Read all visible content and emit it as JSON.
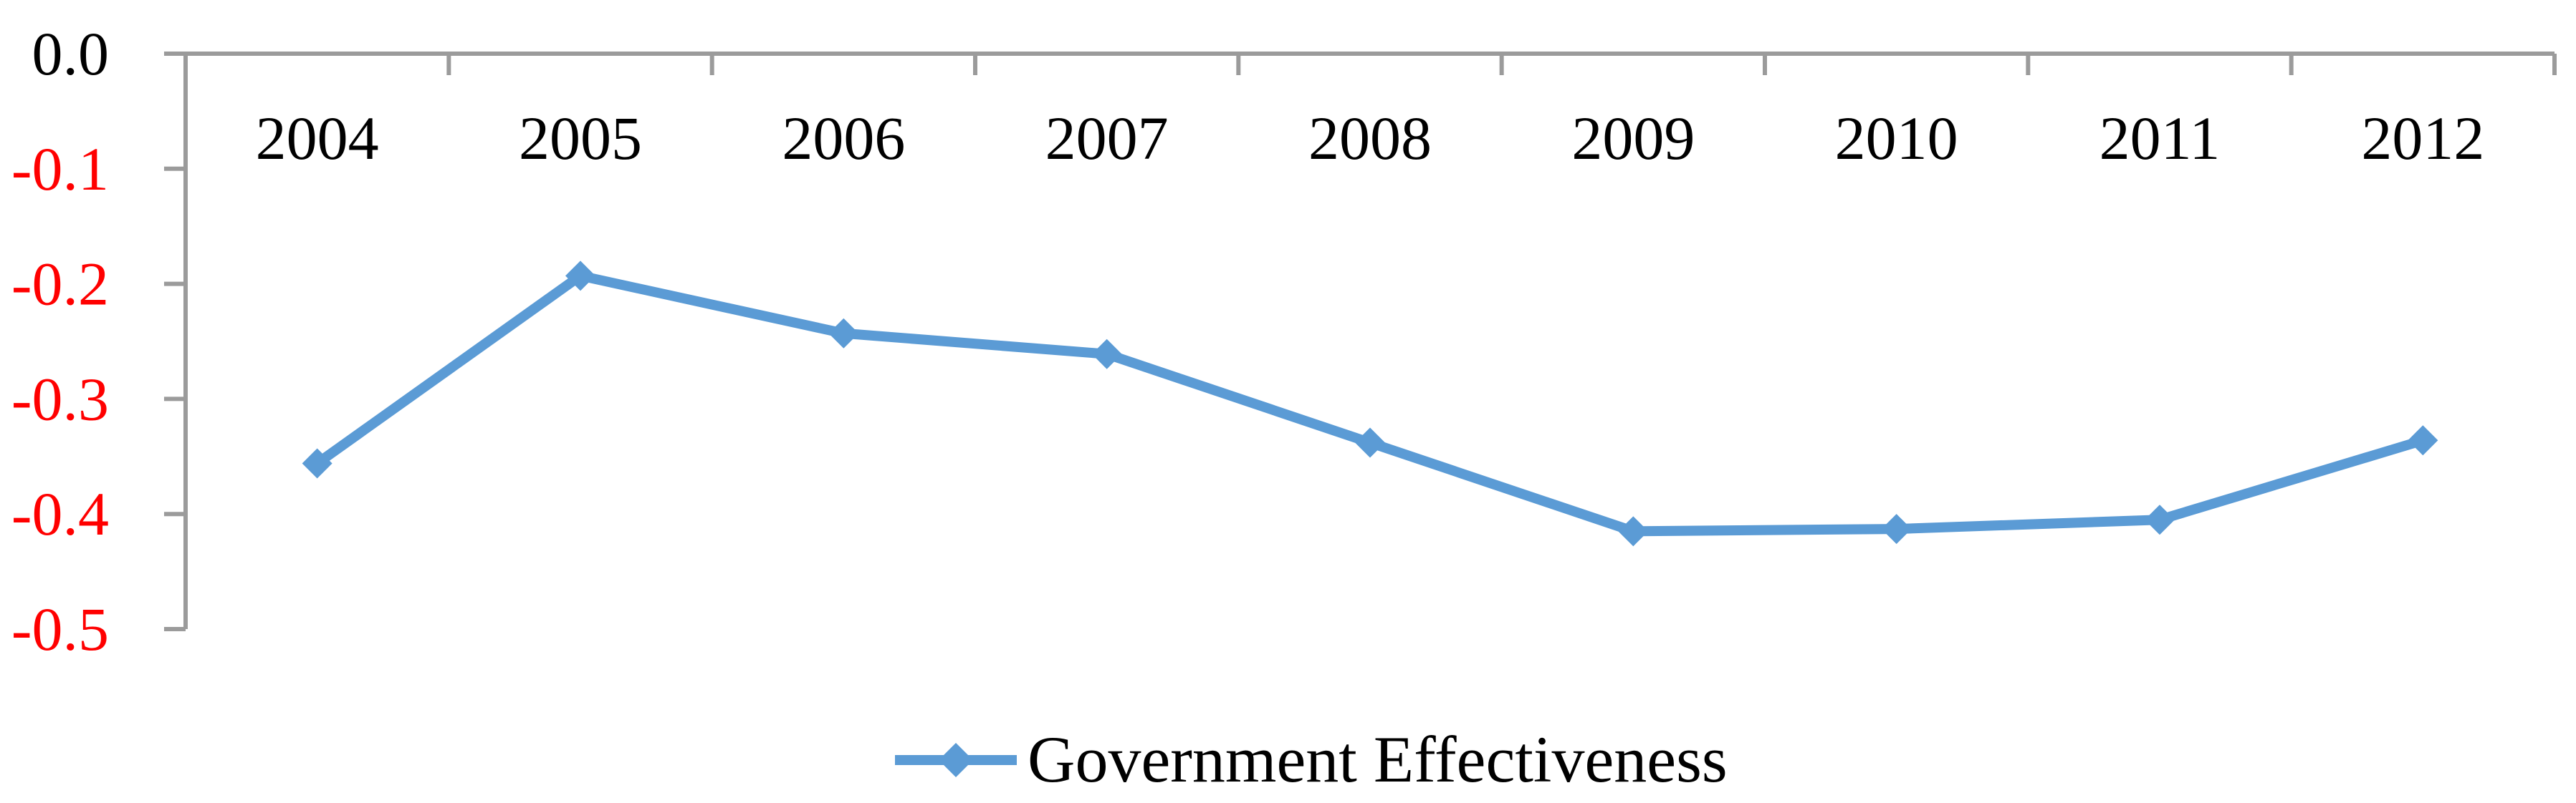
{
  "chart_data": {
    "type": "line",
    "title": "",
    "xlabel": "",
    "ylabel": "",
    "categories": [
      "2004",
      "2005",
      "2006",
      "2007",
      "2008",
      "2009",
      "2010",
      "2011",
      "2012"
    ],
    "series": [
      {
        "name": "Government Effectiveness",
        "values": [
          -0.356,
          -0.193,
          -0.243,
          -0.261,
          -0.338,
          -0.415,
          -0.413,
          -0.405,
          -0.336
        ]
      }
    ],
    "ylim": [
      -0.5,
      0.0
    ],
    "yticks": [
      0.0,
      -0.1,
      -0.2,
      -0.3,
      -0.4,
      -0.5
    ],
    "ytick_labels": [
      "0.0",
      "-0.1",
      "-0.2",
      "-0.3",
      "-0.4",
      "-0.5"
    ],
    "grid": false,
    "axis_note": "x axis drawn at zero line (top), ticks outside, no gridlines",
    "marker_shape": "diamond",
    "legend": {
      "position": "bottom-center",
      "entries": [
        "Government Effectiveness"
      ]
    },
    "colors": {
      "line": "#5B9BD5",
      "marker": "#5B9BD5",
      "axis": "#9B9B9B",
      "zero_tick_label": "#000000",
      "negative_tick_label": "#FF0000",
      "x_tick_label": "#000000",
      "legend_text": "#000000",
      "background": "#FFFFFF"
    }
  }
}
